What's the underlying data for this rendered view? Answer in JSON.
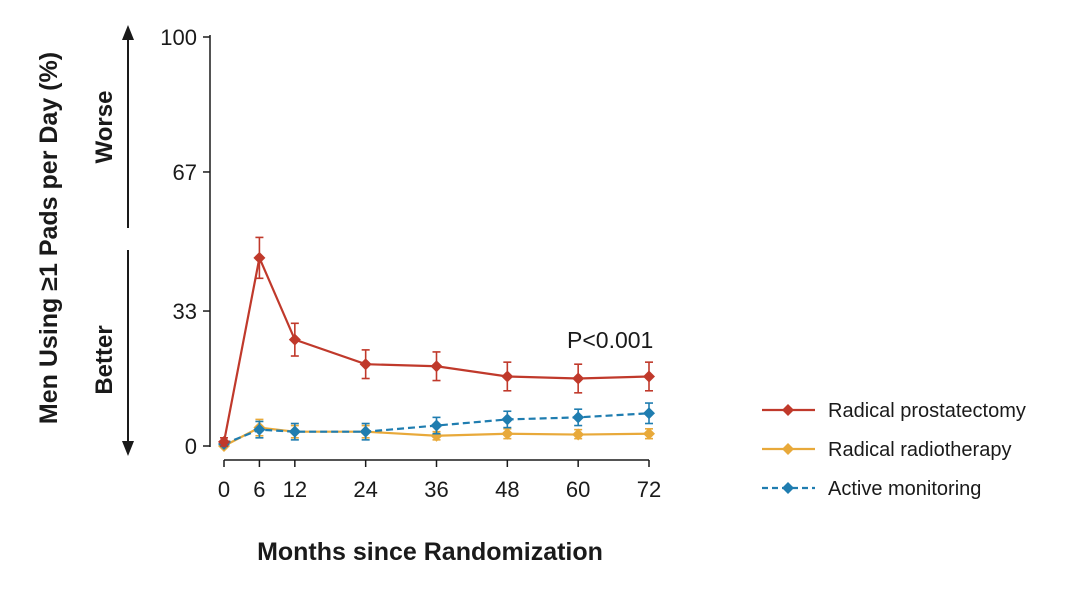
{
  "chart_data": {
    "type": "line",
    "ylabel": "Men Using ≥1 Pads per Day (%)",
    "xlabel": "Months since Randomization",
    "direction_labels": {
      "up": "Worse",
      "down": "Better"
    },
    "annotation": "P<0.001",
    "x": [
      0,
      6,
      12,
      24,
      36,
      48,
      60,
      72
    ],
    "x_ticks": [
      "0",
      "6",
      "12",
      "24",
      "36",
      "48",
      "60",
      "72"
    ],
    "y_ticks": [
      "0",
      "33",
      "67",
      "100"
    ],
    "y_tick_values": [
      0,
      33,
      67,
      100
    ],
    "ylim": [
      0,
      100
    ],
    "xlim": [
      0,
      72
    ],
    "grid": false,
    "legend_position": "right",
    "series": [
      {
        "name": "Radical prostatectomy",
        "color": "#c0392b",
        "dash": false,
        "values": [
          1,
          46,
          26,
          20,
          19.5,
          17,
          16.5,
          17
        ],
        "err_low": [
          0,
          41,
          22,
          16.5,
          16,
          13.5,
          13,
          13.5
        ],
        "err_high": [
          2,
          51,
          30,
          23.5,
          23,
          20.5,
          20,
          20.5
        ]
      },
      {
        "name": "Radical radiotherapy",
        "color": "#e8a93a",
        "dash": false,
        "values": [
          0,
          4.5,
          3.5,
          3.5,
          2.5,
          3,
          2.8,
          3
        ],
        "err_low": [
          0,
          2.5,
          2,
          2,
          1.5,
          1.8,
          1.8,
          1.8
        ],
        "err_high": [
          0.5,
          6.5,
          5,
          5,
          3.5,
          4.2,
          4,
          4.2
        ]
      },
      {
        "name": "Active monitoring",
        "color": "#1f7db0",
        "dash": true,
        "values": [
          0.5,
          4,
          3.5,
          3.5,
          5,
          6.5,
          7,
          8
        ],
        "err_low": [
          0,
          2,
          1.5,
          1.5,
          3,
          4.5,
          5,
          5.5
        ],
        "err_high": [
          1,
          6,
          5.5,
          5.5,
          7,
          8.5,
          9,
          10.5
        ]
      }
    ]
  }
}
